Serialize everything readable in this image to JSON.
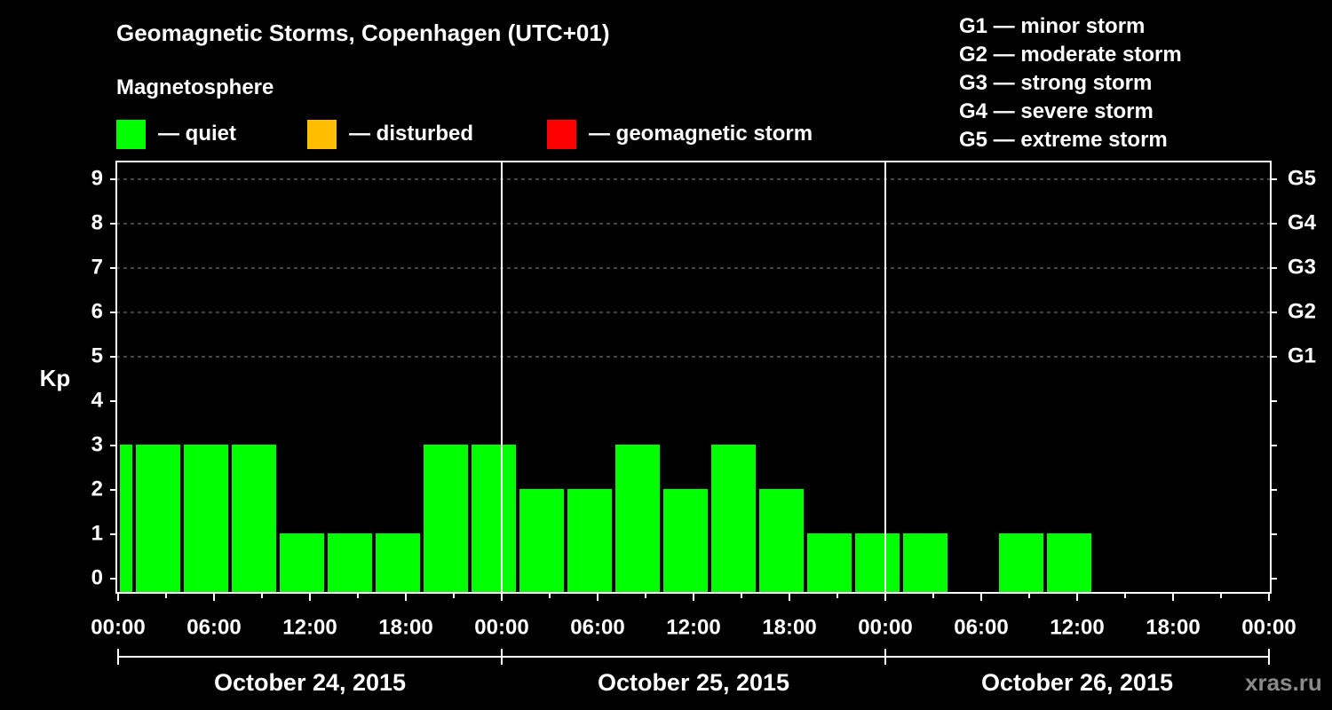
{
  "chart_data": {
    "type": "bar",
    "title": "Geomagnetic Storms, Copenhagen (UTC+01)",
    "subtitle": "Magnetosphere",
    "ylabel": "Kp",
    "ylim": [
      0,
      9
    ],
    "y_ticks": [
      "0",
      "1",
      "2",
      "3",
      "4",
      "5",
      "6",
      "7",
      "8",
      "9"
    ],
    "right_ticks": [
      {
        "kp": 5,
        "label": "G1"
      },
      {
        "kp": 6,
        "label": "G2"
      },
      {
        "kp": 7,
        "label": "G3"
      },
      {
        "kp": 8,
        "label": "G4"
      },
      {
        "kp": 9,
        "label": "G5"
      }
    ],
    "x_range_hours": [
      0,
      72
    ],
    "x_tick_labels": [
      "00:00",
      "06:00",
      "12:00",
      "18:00",
      "00:00",
      "06:00",
      "12:00",
      "18:00",
      "00:00",
      "06:00",
      "12:00",
      "18:00",
      "00:00"
    ],
    "dates": [
      "October 24, 2015",
      "October 25, 2015",
      "October 26, 2015"
    ],
    "bars": [
      {
        "start": 0,
        "end": 1,
        "value": 3
      },
      {
        "start": 1,
        "end": 4,
        "value": 3
      },
      {
        "start": 4,
        "end": 7,
        "value": 3
      },
      {
        "start": 7,
        "end": 10,
        "value": 3
      },
      {
        "start": 10,
        "end": 13,
        "value": 1
      },
      {
        "start": 13,
        "end": 16,
        "value": 1
      },
      {
        "start": 16,
        "end": 19,
        "value": 1
      },
      {
        "start": 19,
        "end": 22,
        "value": 3
      },
      {
        "start": 22,
        "end": 25,
        "value": 3
      },
      {
        "start": 25,
        "end": 28,
        "value": 2
      },
      {
        "start": 28,
        "end": 31,
        "value": 2
      },
      {
        "start": 31,
        "end": 34,
        "value": 3
      },
      {
        "start": 34,
        "end": 37,
        "value": 2
      },
      {
        "start": 37,
        "end": 40,
        "value": 3
      },
      {
        "start": 40,
        "end": 43,
        "value": 2
      },
      {
        "start": 43,
        "end": 46,
        "value": 1
      },
      {
        "start": 46,
        "end": 49,
        "value": 1
      },
      {
        "start": 49,
        "end": 52,
        "value": 1
      },
      {
        "start": 55,
        "end": 58,
        "value": 1
      },
      {
        "start": 58,
        "end": 61,
        "value": 1
      }
    ],
    "grid": true,
    "colors": {
      "quiet": "#00ff00",
      "disturbed": "#ffbf00",
      "storm": "#ff0000"
    }
  },
  "legend": {
    "quiet": "— quiet",
    "disturbed": "— disturbed",
    "storm": "— geomagnetic storm"
  },
  "g_legend": [
    "G1 — minor storm",
    "G2 — moderate storm",
    "G3 — strong storm",
    "G4 — severe storm",
    "G5 — extreme storm"
  ],
  "watermark": "xras.ru"
}
